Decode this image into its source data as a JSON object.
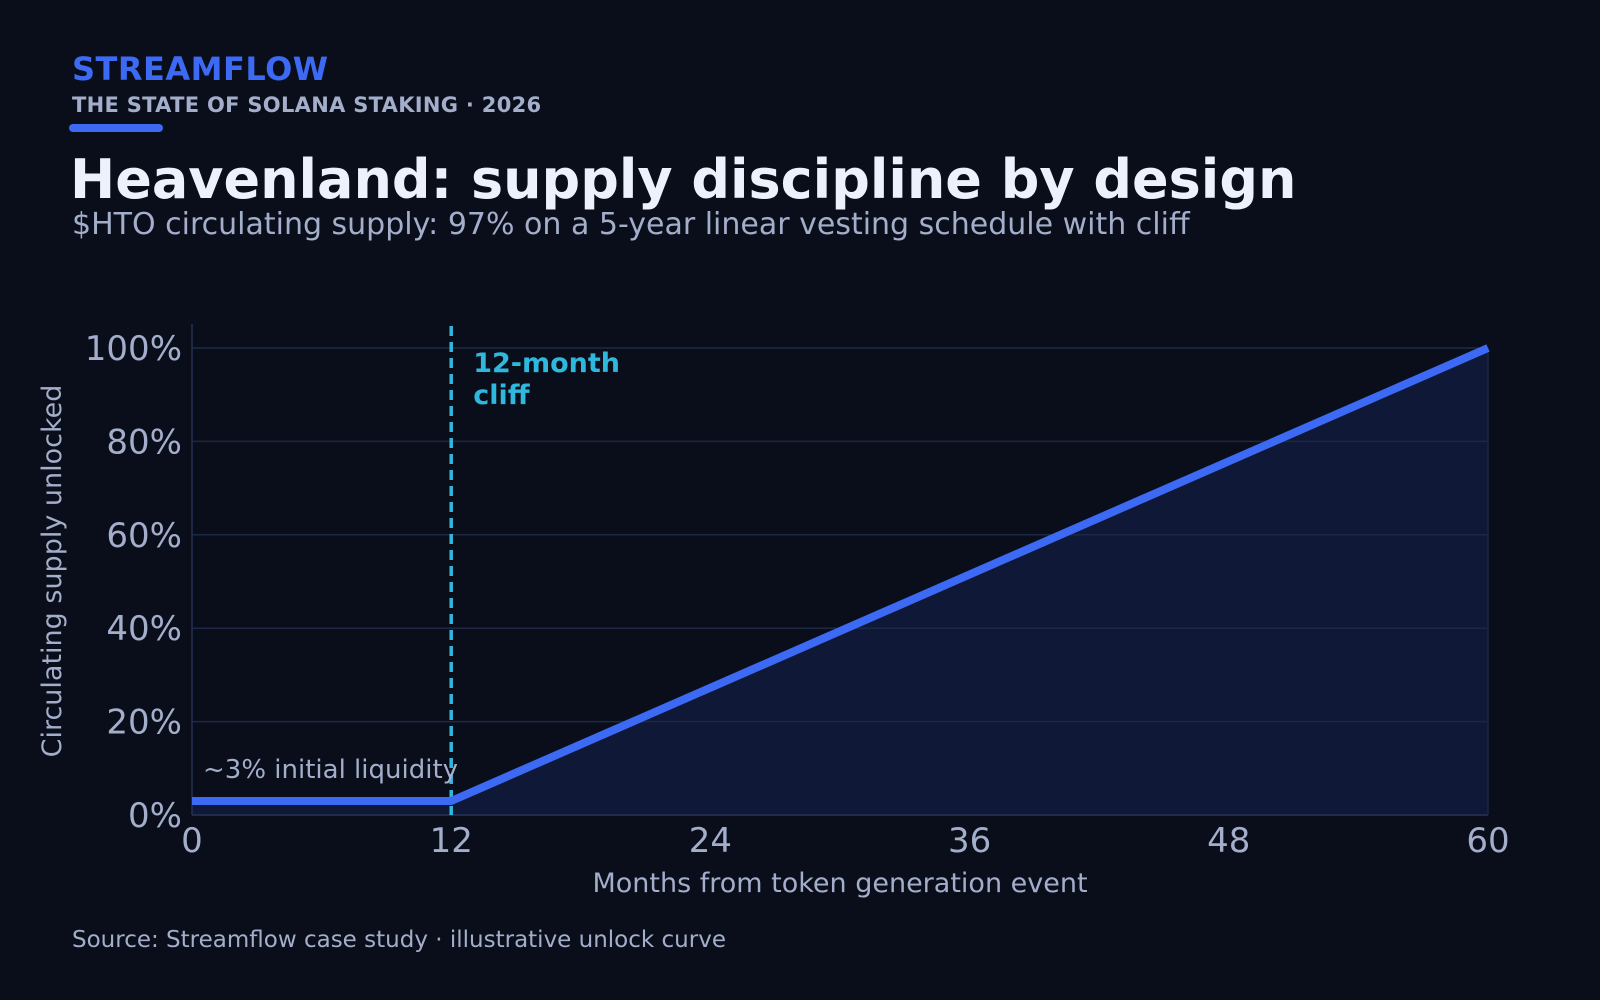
{
  "header": {
    "brand": "STREAMFLOW",
    "report": "THE STATE OF SOLANA STAKING  ·  2026",
    "title": "Heavenland: supply discipline by design",
    "subtitle": "$HTO circulating supply: 97% on a 5-year linear vesting schedule with cliff"
  },
  "footer": {
    "source": "Source: Streamflow case study · illustrative unlock curve"
  },
  "colors": {
    "background": "#0a0e1a",
    "accent": "#3d6af5",
    "cliff": "#2fb8dd",
    "area_fill": "#101838",
    "grid": "#1c2845",
    "text_muted": "#a3aecb"
  },
  "chart_data": {
    "type": "line",
    "xlabel": "Months from token generation event",
    "ylabel": "Circulating supply unlocked",
    "xlim": [
      0,
      60
    ],
    "ylim": [
      0,
      100
    ],
    "x_ticks": [
      0,
      12,
      24,
      36,
      48,
      60
    ],
    "x_tick_labels": [
      "0",
      "12",
      "24",
      "36",
      "48",
      "60"
    ],
    "y_ticks": [
      0,
      20,
      40,
      60,
      80,
      100
    ],
    "y_tick_labels": [
      "0%",
      "20%",
      "40%",
      "60%",
      "80%",
      "100%"
    ],
    "grid": "horizontal",
    "area_fill": true,
    "series": [
      {
        "x": [
          0,
          12,
          60
        ],
        "y": [
          3,
          3,
          100
        ]
      }
    ],
    "annotations": [
      {
        "label": "~3% initial liquidity",
        "x": 0,
        "y": 3
      },
      {
        "label_lines": [
          "12-month",
          "cliff"
        ],
        "x": 12,
        "style": "dashed-vertical"
      }
    ]
  }
}
